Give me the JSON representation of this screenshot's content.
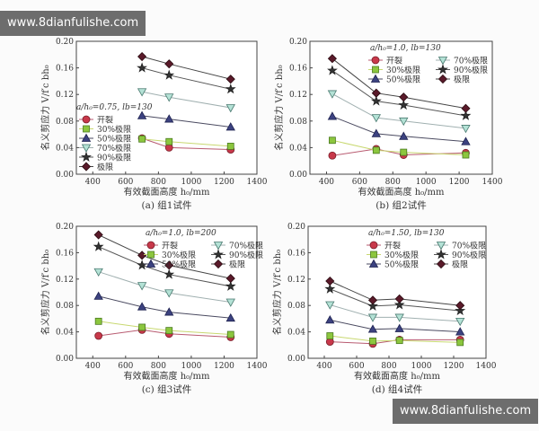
{
  "watermarks": {
    "top_left": "www.8dianfulishe.com",
    "bottom_right": "www.8dianfulishe.com"
  },
  "legend_labels": [
    "开裂",
    "30%极限",
    "50%极限",
    "70%极限",
    "90%极限",
    "极限"
  ],
  "series_style": [
    {
      "marker": "circle",
      "fill": "#c8384a",
      "stroke": "#7a1e2a",
      "line": "#b85a70"
    },
    {
      "marker": "square",
      "fill": "#8cc63e",
      "stroke": "#4a7a20",
      "line": "#c8d870"
    },
    {
      "marker": "triangle",
      "fill": "#3c4280",
      "stroke": "#1e2250",
      "line": "#4a4a60"
    },
    {
      "marker": "triangle-down",
      "fill": "#b4e2d6",
      "stroke": "#4a7a70",
      "line": "#a0b0b0"
    },
    {
      "marker": "star",
      "fill": "#333333",
      "stroke": "#222222",
      "line": "#555555"
    },
    {
      "marker": "diamond",
      "fill": "#5a1a2a",
      "stroke": "#2a0a10",
      "line": "#444444"
    }
  ],
  "chart_data": [
    {
      "type": "line",
      "caption": "(a) 组1试件",
      "legend_title": "a/h₀=0.75, lb=130",
      "xlabel": "有效截面高度 h₀/mm",
      "ylabel": "名义剪应力 V/f′c bh₀",
      "xlim": [
        300,
        1400
      ],
      "ylim": [
        0,
        0.2
      ],
      "xticks": [
        "400",
        "600",
        "800",
        "1000",
        "1200",
        "1400"
      ],
      "yticks": [
        "0.00",
        "0.04",
        "0.08",
        "0.12",
        "0.16",
        "0.20"
      ],
      "x": [
        700,
        865,
        1240
      ],
      "series": [
        {
          "name": "开裂",
          "values": [
            0.054,
            0.04,
            0.037
          ]
        },
        {
          "name": "30%极限",
          "values": [
            0.053,
            0.049,
            0.042
          ]
        },
        {
          "name": "50%极限",
          "values": [
            0.088,
            0.083,
            0.071
          ]
        },
        {
          "name": "70%极限",
          "values": [
            0.124,
            0.116,
            0.1
          ]
        },
        {
          "name": "90%极限",
          "values": [
            0.16,
            0.149,
            0.128
          ]
        },
        {
          "name": "极限",
          "values": [
            0.177,
            0.166,
            0.143
          ]
        }
      ]
    },
    {
      "type": "line",
      "caption": "(b) 组2试件",
      "legend_title": "a/h₀=1.0, lb=130",
      "xlabel": "有效截面高度 h₀/mm",
      "ylabel": "名义剪应力 V/f′c bh₀",
      "xlim": [
        300,
        1400
      ],
      "ylim": [
        0,
        0.2
      ],
      "xticks": [
        "400",
        "600",
        "800",
        "1000",
        "1200",
        "1400"
      ],
      "yticks": [
        "0.00",
        "0.04",
        "0.08",
        "0.12",
        "0.16",
        "0.20"
      ],
      "x": [
        435,
        700,
        865,
        1240
      ],
      "series": [
        {
          "name": "开裂",
          "values": [
            0.028,
            0.038,
            0.029,
            0.032
          ]
        },
        {
          "name": "30%极限",
          "values": [
            0.051,
            0.036,
            0.033,
            0.029
          ]
        },
        {
          "name": "50%极限",
          "values": [
            0.087,
            0.061,
            0.057,
            0.049
          ]
        },
        {
          "name": "70%极限",
          "values": [
            0.121,
            0.085,
            0.08,
            0.069
          ]
        },
        {
          "name": "90%极限",
          "values": [
            0.156,
            0.11,
            0.104,
            0.088
          ]
        },
        {
          "name": "极限",
          "values": [
            0.174,
            0.122,
            0.116,
            0.099
          ]
        }
      ]
    },
    {
      "type": "line",
      "caption": "(c) 组3试件",
      "legend_title": "a/h₀=1.0, lb=200",
      "xlabel": "有效截面高度 h₀/mm",
      "ylabel": "名义剪应力 V/f′c bh₀",
      "xlim": [
        300,
        1400
      ],
      "ylim": [
        0,
        0.2
      ],
      "xticks": [
        "400",
        "600",
        "800",
        "1000",
        "1200",
        "1400"
      ],
      "yticks": [
        "0.00",
        "0.04",
        "0.08",
        "0.12",
        "0.16",
        "0.20"
      ],
      "x": [
        435,
        700,
        865,
        1240
      ],
      "series": [
        {
          "name": "开裂",
          "values": [
            0.034,
            0.043,
            0.037,
            0.032
          ]
        },
        {
          "name": "30%极限",
          "values": [
            0.056,
            0.047,
            0.042,
            0.036
          ]
        },
        {
          "name": "50%极限",
          "values": [
            0.094,
            0.078,
            0.07,
            0.061
          ]
        },
        {
          "name": "70%极限",
          "values": [
            0.131,
            0.11,
            0.099,
            0.085
          ]
        },
        {
          "name": "90%极限",
          "values": [
            0.169,
            0.141,
            0.127,
            0.109
          ]
        },
        {
          "name": "极限",
          "values": [
            0.187,
            0.156,
            0.141,
            0.121
          ]
        }
      ]
    },
    {
      "type": "line",
      "caption": "(d) 组4试件",
      "legend_title": "a/h₀=1.50, lb=130",
      "xlabel": "有效截面高度 h₀/mm",
      "ylabel": "名义剪应力 V/f′c bh₀",
      "xlim": [
        300,
        1400
      ],
      "ylim": [
        0,
        0.2
      ],
      "xticks": [
        "400",
        "600",
        "800",
        "1000",
        "1200",
        "1400"
      ],
      "yticks": [
        "0.00",
        "0.04",
        "0.08",
        "0.12",
        "0.16",
        "0.20"
      ],
      "x": [
        435,
        700,
        865,
        1240
      ],
      "series": [
        {
          "name": "开裂",
          "values": [
            0.025,
            0.022,
            0.028,
            0.028
          ]
        },
        {
          "name": "30%极限",
          "values": [
            0.034,
            0.026,
            0.027,
            0.024
          ]
        },
        {
          "name": "50%极限",
          "values": [
            0.058,
            0.044,
            0.045,
            0.04
          ]
        },
        {
          "name": "70%极限",
          "values": [
            0.081,
            0.062,
            0.062,
            0.056
          ]
        },
        {
          "name": "90%极限",
          "values": [
            0.105,
            0.079,
            0.081,
            0.072
          ]
        },
        {
          "name": "极限",
          "values": [
            0.117,
            0.088,
            0.09,
            0.08
          ]
        }
      ]
    }
  ]
}
